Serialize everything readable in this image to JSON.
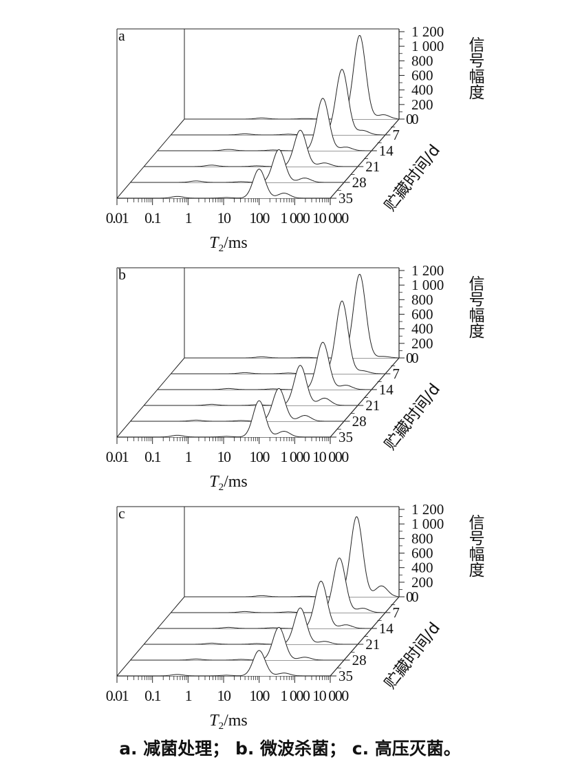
{
  "chart_data": [
    {
      "type": "line",
      "panel_label": "a",
      "x_ticks": [
        "0.01",
        "0.1",
        "1",
        "10",
        "100",
        "1 000",
        "10 000"
      ],
      "xlabel_italic": "T",
      "xlabel_sub": "2",
      "xlabel_unit": "/ms",
      "z_ticks": [
        "0",
        "200",
        "400",
        "600",
        "800",
        "1 000",
        "1 200"
      ],
      "zlabel": "信号幅度",
      "y_ticks": [
        "0",
        "7",
        "14",
        "21",
        "28",
        "35"
      ],
      "ylabel": "贮藏时间/d",
      "zlim": [
        0,
        1200
      ],
      "series": [
        {
          "day": 0,
          "peaks": [
            {
              "t2": 1.5,
              "amp": 15
            },
            {
              "t2": 25,
              "amp": 8
            },
            {
              "t2": 850,
              "amp": 1150
            },
            {
              "t2": 4000,
              "amp": 60
            }
          ]
        },
        {
          "day": 7,
          "peaks": [
            {
              "t2": 1.2,
              "amp": 15
            },
            {
              "t2": 20,
              "amp": 10
            },
            {
              "t2": 650,
              "amp": 900
            },
            {
              "t2": 2500,
              "amp": 60
            }
          ]
        },
        {
          "day": 14,
          "peaks": [
            {
              "t2": 1.0,
              "amp": 18
            },
            {
              "t2": 18,
              "amp": 10
            },
            {
              "t2": 450,
              "amp": 720
            },
            {
              "t2": 2000,
              "amp": 50
            }
          ]
        },
        {
          "day": 21,
          "peaks": [
            {
              "t2": 0.8,
              "amp": 20
            },
            {
              "t2": 15,
              "amp": 10
            },
            {
              "t2": 250,
              "amp": 500
            },
            {
              "t2": 1200,
              "amp": 50
            }
          ]
        },
        {
          "day": 28,
          "peaks": [
            {
              "t2": 0.7,
              "amp": 20
            },
            {
              "t2": 13,
              "amp": 10
            },
            {
              "t2": 150,
              "amp": 450
            },
            {
              "t2": 800,
              "amp": 60
            }
          ]
        },
        {
          "day": 35,
          "peaks": [
            {
              "t2": 0.5,
              "amp": 25
            },
            {
              "t2": 12,
              "amp": 10
            },
            {
              "t2": 100,
              "amp": 400
            },
            {
              "t2": 500,
              "amp": 70
            }
          ]
        }
      ]
    },
    {
      "type": "line",
      "panel_label": "b",
      "x_ticks": [
        "0.01",
        "0.1",
        "1",
        "10",
        "100",
        "1 000",
        "10 000"
      ],
      "xlabel_italic": "T",
      "xlabel_sub": "2",
      "xlabel_unit": "/ms",
      "z_ticks": [
        "0",
        "200",
        "400",
        "600",
        "800",
        "1 000",
        "1 200"
      ],
      "zlabel": "信号幅度",
      "y_ticks": [
        "0",
        "7",
        "14",
        "21",
        "28",
        "35"
      ],
      "ylabel": "贮藏时间/d",
      "zlim": [
        0,
        1200
      ],
      "series": [
        {
          "day": 0,
          "peaks": [
            {
              "t2": 1.5,
              "amp": 15
            },
            {
              "t2": 25,
              "amp": 8
            },
            {
              "t2": 850,
              "amp": 1150
            },
            {
              "t2": 4000,
              "amp": 20
            }
          ]
        },
        {
          "day": 7,
          "peaks": [
            {
              "t2": 1.2,
              "amp": 15
            },
            {
              "t2": 20,
              "amp": 10
            },
            {
              "t2": 650,
              "amp": 1000
            },
            {
              "t2": 2500,
              "amp": 40
            }
          ]
        },
        {
          "day": 14,
          "peaks": [
            {
              "t2": 1.0,
              "amp": 15
            },
            {
              "t2": 18,
              "amp": 10
            },
            {
              "t2": 450,
              "amp": 650
            },
            {
              "t2": 2000,
              "amp": 60
            }
          ]
        },
        {
          "day": 21,
          "peaks": [
            {
              "t2": 0.8,
              "amp": 15
            },
            {
              "t2": 15,
              "amp": 10
            },
            {
              "t2": 250,
              "amp": 550
            },
            {
              "t2": 1200,
              "amp": 100
            }
          ]
        },
        {
          "day": 28,
          "peaks": [
            {
              "t2": 0.7,
              "amp": 15
            },
            {
              "t2": 13,
              "amp": 10
            },
            {
              "t2": 150,
              "amp": 450
            },
            {
              "t2": 800,
              "amp": 80
            }
          ]
        },
        {
          "day": 35,
          "peaks": [
            {
              "t2": 0.5,
              "amp": 25
            },
            {
              "t2": 12,
              "amp": 10
            },
            {
              "t2": 100,
              "amp": 500
            },
            {
              "t2": 500,
              "amp": 80
            }
          ]
        }
      ]
    },
    {
      "type": "line",
      "panel_label": "c",
      "x_ticks": [
        "0.01",
        "0.1",
        "1",
        "10",
        "100",
        "1 000",
        "10 000"
      ],
      "xlabel_italic": "T",
      "xlabel_sub": "2",
      "xlabel_unit": "/ms",
      "z_ticks": [
        "0",
        "200",
        "400",
        "600",
        "800",
        "1 000",
        "1 200"
      ],
      "zlabel": "信号幅度",
      "y_ticks": [
        "0",
        "7",
        "14",
        "21",
        "28",
        "35"
      ],
      "ylabel": "贮藏时间/d",
      "zlim": [
        0,
        1200
      ],
      "series": [
        {
          "day": 0,
          "peaks": [
            {
              "t2": 1.5,
              "amp": 15
            },
            {
              "t2": 25,
              "amp": 8
            },
            {
              "t2": 700,
              "amp": 1100
            },
            {
              "t2": 3500,
              "amp": 150
            }
          ]
        },
        {
          "day": 7,
          "peaks": [
            {
              "t2": 1.2,
              "amp": 15
            },
            {
              "t2": 20,
              "amp": 10
            },
            {
              "t2": 550,
              "amp": 750
            },
            {
              "t2": 2500,
              "amp": 60
            }
          ]
        },
        {
          "day": 14,
          "peaks": [
            {
              "t2": 1.0,
              "amp": 15
            },
            {
              "t2": 18,
              "amp": 10
            },
            {
              "t2": 400,
              "amp": 650
            },
            {
              "t2": 2000,
              "amp": 50
            }
          ]
        },
        {
          "day": 21,
          "peaks": [
            {
              "t2": 0.8,
              "amp": 15
            },
            {
              "t2": 15,
              "amp": 10
            },
            {
              "t2": 250,
              "amp": 500
            },
            {
              "t2": 1200,
              "amp": 40
            }
          ]
        },
        {
          "day": 28,
          "peaks": [
            {
              "t2": 0.7,
              "amp": 15
            },
            {
              "t2": 13,
              "amp": 10
            },
            {
              "t2": 150,
              "amp": 450
            },
            {
              "t2": 800,
              "amp": 40
            }
          ]
        },
        {
          "day": 35,
          "peaks": [
            {
              "t2": 0.5,
              "amp": 20
            },
            {
              "t2": 12,
              "amp": 10
            },
            {
              "t2": 100,
              "amp": 350
            },
            {
              "t2": 500,
              "amp": 40
            }
          ]
        }
      ]
    }
  ],
  "caption": "a. 减菌处理； b. 微波杀菌； c. 高压灭菌。"
}
